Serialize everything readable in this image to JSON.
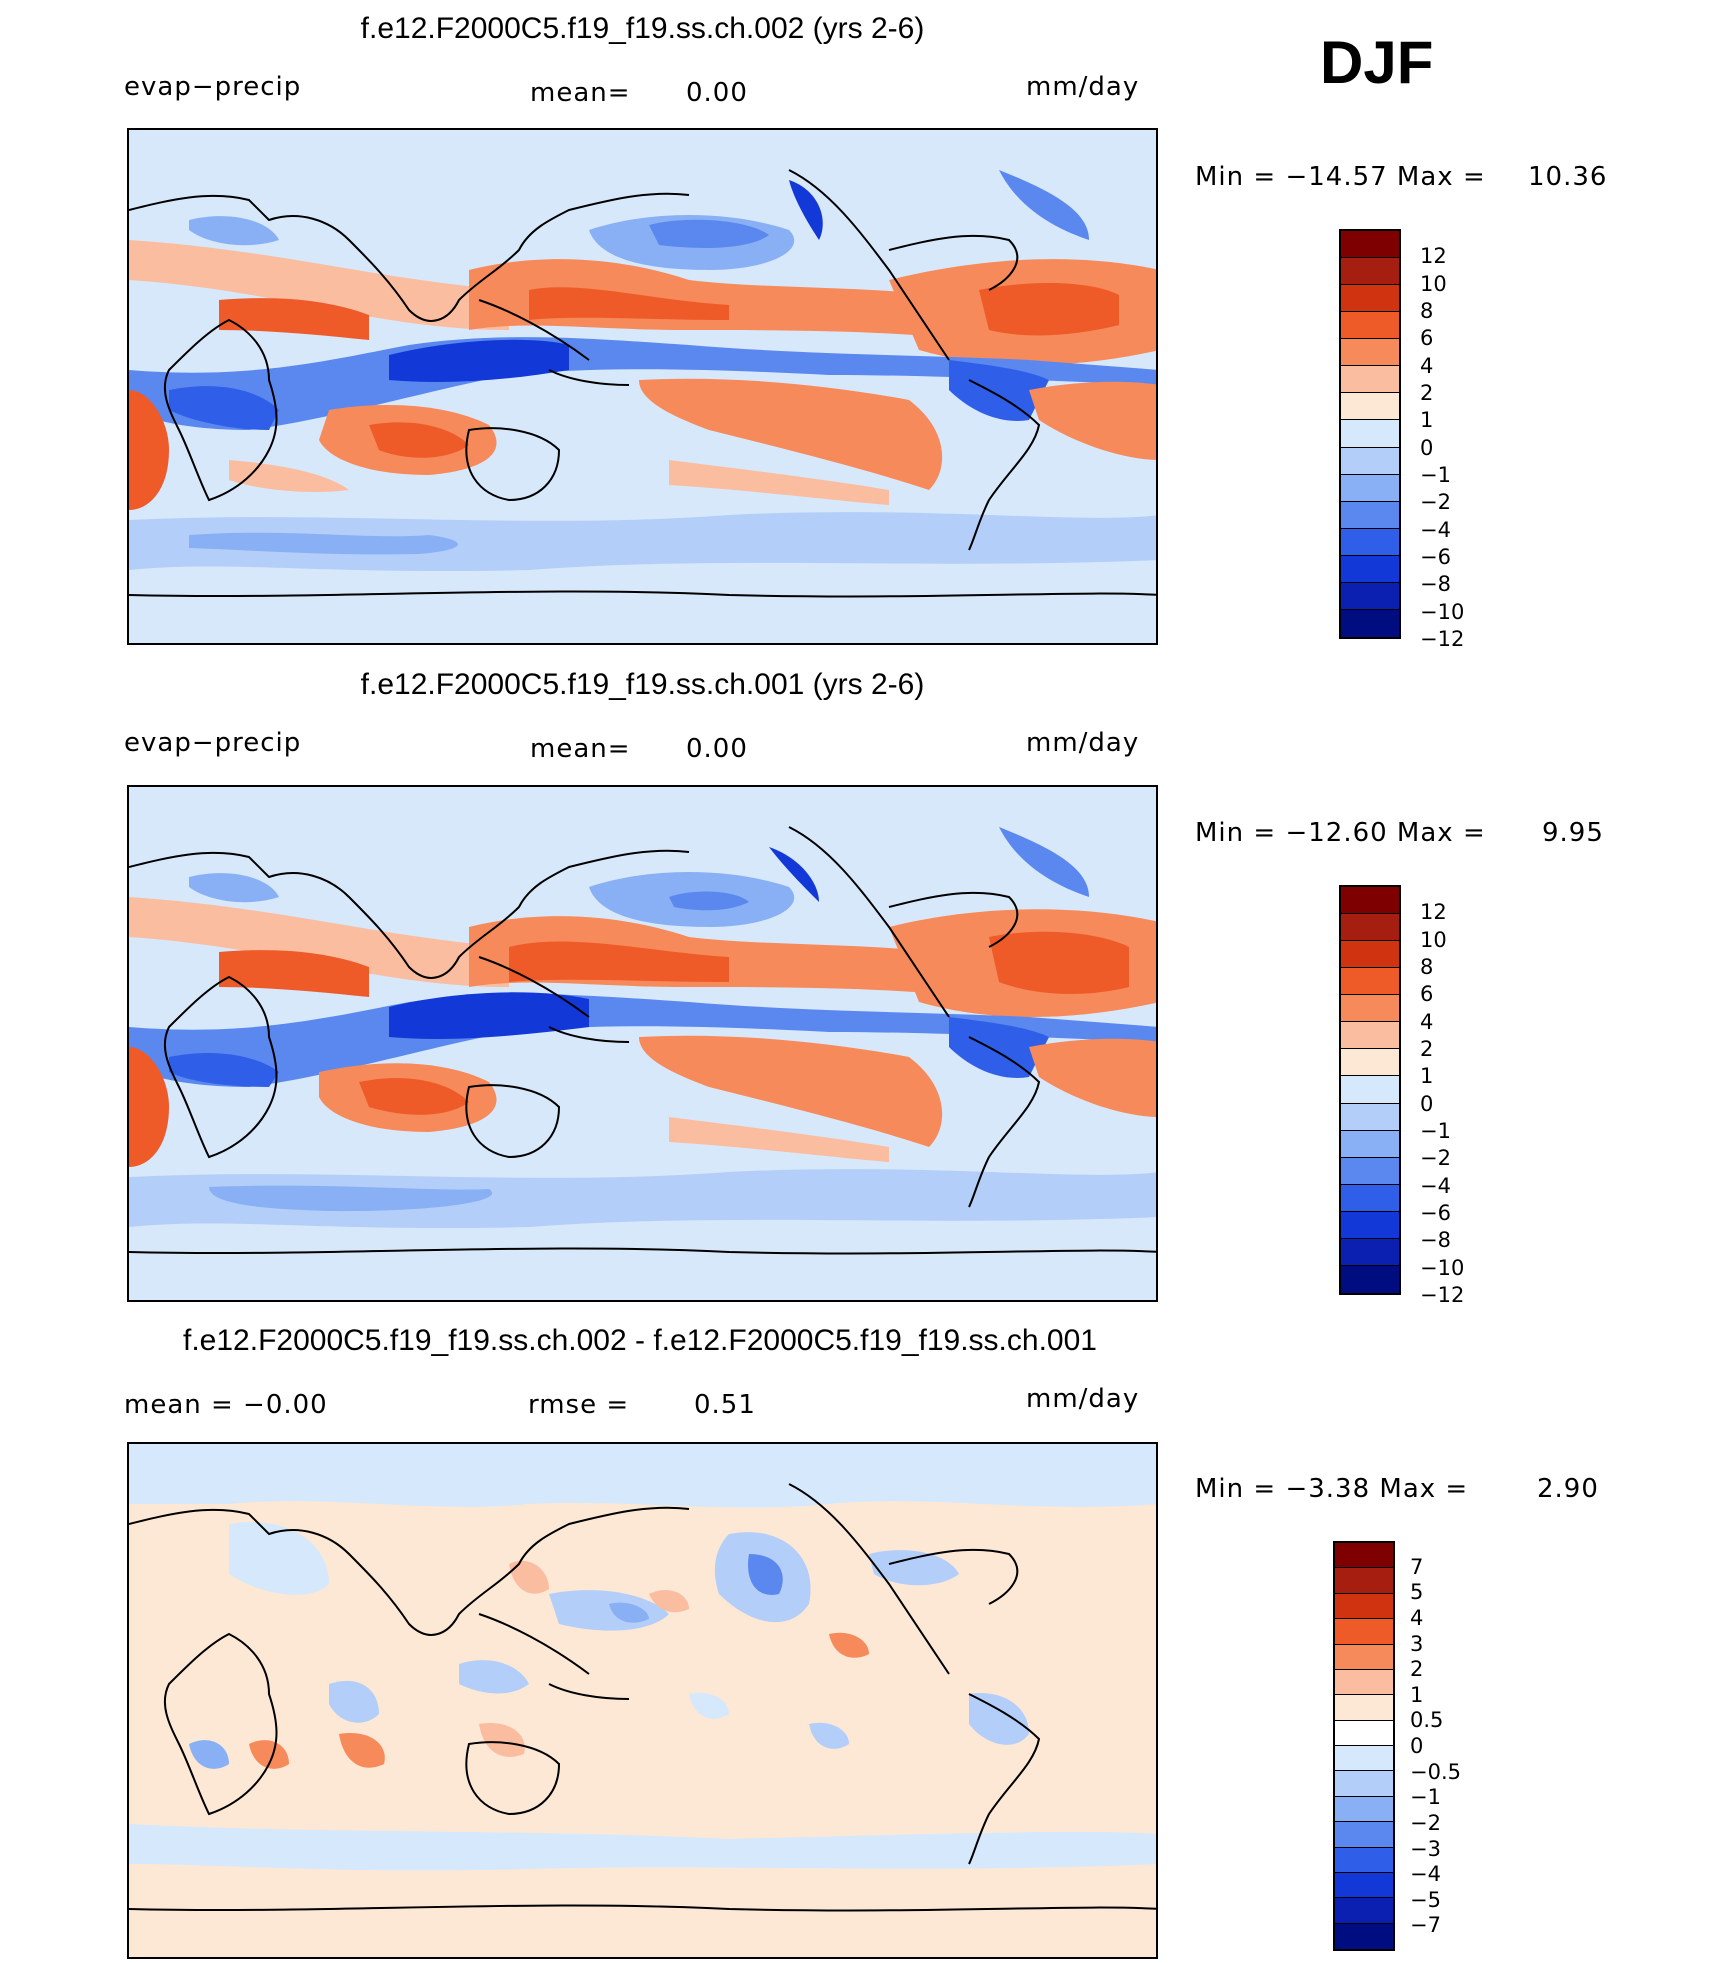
{
  "season": "DJF",
  "panels": [
    {
      "title": "f.e12.F2000C5.f19_f19.ss.ch.002 (yrs 2-6)",
      "left_label": "evap−precip",
      "center_label": "mean=",
      "center_value": "0.00",
      "right_label": "",
      "right_value": "",
      "units": "mm/day",
      "min_label": "Min  =  −14.57  Max  =",
      "max_value": "10.36",
      "colorbar": {
        "colors": [
          "#7f0000",
          "#a61e0f",
          "#d0330f",
          "#ef5a29",
          "#f68a5a",
          "#fbbda0",
          "#fde8d6",
          "#d6e8fb",
          "#b3cef8",
          "#89b0f4",
          "#5a88ef",
          "#2f5fe8",
          "#1239d8",
          "#0b1fb0",
          "#000d80"
        ],
        "ticks": [
          "12",
          "10",
          "8",
          "6",
          "4",
          "2",
          "1",
          "0",
          "−1",
          "−2",
          "−4",
          "−6",
          "−8",
          "−10",
          "−12"
        ]
      }
    },
    {
      "title": "f.e12.F2000C5.f19_f19.ss.ch.001 (yrs 2-6)",
      "left_label": "evap−precip",
      "center_label": "mean=",
      "center_value": "0.00",
      "right_label": "",
      "right_value": "",
      "units": "mm/day",
      "min_label": "Min  =  −12.60  Max  =",
      "max_value": "9.95",
      "colorbar": {
        "colors": [
          "#7f0000",
          "#a61e0f",
          "#d0330f",
          "#ef5a29",
          "#f68a5a",
          "#fbbda0",
          "#fde8d6",
          "#d6e8fb",
          "#b3cef8",
          "#89b0f4",
          "#5a88ef",
          "#2f5fe8",
          "#1239d8",
          "#0b1fb0",
          "#000d80"
        ],
        "ticks": [
          "12",
          "10",
          "8",
          "6",
          "4",
          "2",
          "1",
          "0",
          "−1",
          "−2",
          "−4",
          "−6",
          "−8",
          "−10",
          "−12"
        ]
      }
    },
    {
      "title": "f.e12.F2000C5.f19_f19.ss.ch.002 - f.e12.F2000C5.f19_f19.ss.ch.001",
      "left_label": "mean  =   −0.00",
      "center_label": "rmse  =",
      "center_value": "0.51",
      "right_label": "",
      "right_value": "",
      "units": "mm/day",
      "min_label": "Min  =   −3.38  Max  =",
      "max_value": "2.90",
      "colorbar": {
        "colors": [
          "#7f0000",
          "#a61e0f",
          "#d0330f",
          "#ef5a29",
          "#f68a5a",
          "#fbbda0",
          "#fde8d6",
          "#ffffff",
          "#d6e8fb",
          "#b3cef8",
          "#89b0f4",
          "#5a88ef",
          "#2f5fe8",
          "#1239d8",
          "#0b1fb0",
          "#000d80"
        ],
        "ticks": [
          "7",
          "5",
          "4",
          "3",
          "2",
          "1",
          "0.5",
          "0",
          "−0.5",
          "−1",
          "−2",
          "−3",
          "−4",
          "−5",
          "−7"
        ]
      }
    }
  ]
}
